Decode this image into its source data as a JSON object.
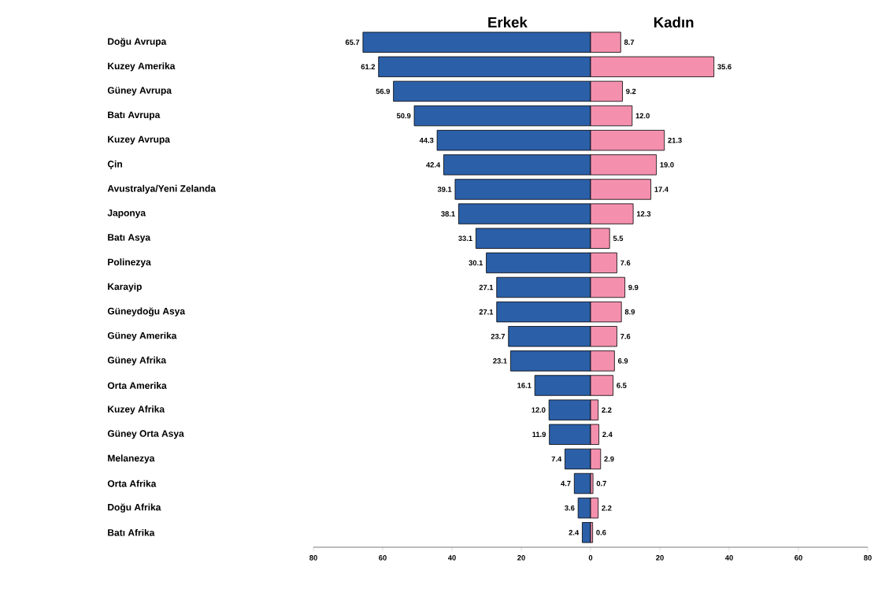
{
  "chart_data": {
    "type": "bar",
    "orientation": "horizontal",
    "categories": [
      "Doğu Avrupa",
      "Kuzey Amerika",
      "Güney Avrupa",
      "Batı Avrupa",
      "Kuzey Avrupa",
      "Çin",
      "Avustralya/Yeni Zelanda",
      "Japonya",
      "Batı Asya",
      "Polinezya",
      "Karayip",
      "Güneydoğu Asya",
      "Güney Amerika",
      "Güney Afrika",
      "Orta Amerika",
      "Kuzey Afrika",
      "Güney Orta Asya",
      "Melanezya",
      "Orta Afrika",
      "Doğu Afrika",
      "Batı Afrika"
    ],
    "series": [
      {
        "name": "Erkek",
        "color": "#2b5fa8",
        "values": [
          65.7,
          61.2,
          56.9,
          50.9,
          44.3,
          42.4,
          39.1,
          38.1,
          33.1,
          30.1,
          27.1,
          27.1,
          23.7,
          23.1,
          16.1,
          12.0,
          11.9,
          7.4,
          4.7,
          3.6,
          2.4
        ],
        "base": [
          -65.7,
          -61.2,
          -56.9,
          -50.9,
          -44.3,
          -42.4,
          -39.1,
          -38.1,
          -33.1,
          -30.1,
          -27.1,
          -27.1,
          -23.7,
          -23.1,
          -16.1,
          -12.0,
          -11.9,
          -7.4,
          -4.7,
          -3.6,
          -2.4
        ],
        "value_labels": [
          "65.7",
          "61.2",
          "56.9",
          "50.9",
          "44.3",
          "42.4",
          "39.1",
          "38.1",
          "33.1",
          "30.1",
          "27.1",
          "27.1",
          "23.7",
          "23.1",
          "16.1",
          "12.0",
          "11.9",
          "7.4",
          "4.7",
          "3.6",
          "2.4"
        ]
      },
      {
        "name": "Kadın",
        "color": "#f490ae",
        "values": [
          8.7,
          35.6,
          9.2,
          12.0,
          21.3,
          19.0,
          17.4,
          12.3,
          5.5,
          7.6,
          9.9,
          8.9,
          7.6,
          6.9,
          6.5,
          2.2,
          2.4,
          2.9,
          0.7,
          2.2,
          0.6
        ],
        "value_labels": [
          "8.7",
          "35.6",
          "9.2",
          "12.0",
          "21.3",
          "19.0",
          "17.4",
          "12.3",
          "5.5",
          "7.6",
          "9.9",
          "8.9",
          "7.6",
          "6.9",
          "6.5",
          "2.2",
          "2.4",
          "2.9",
          "0.7",
          "2.2",
          "0.6"
        ]
      }
    ],
    "xlim": [
      -80,
      80
    ],
    "xticks": [
      {
        "value": -80,
        "label": "80"
      },
      {
        "value": -60,
        "label": "60"
      },
      {
        "value": -40,
        "label": "40"
      },
      {
        "value": -20,
        "label": "20"
      },
      0,
      20,
      40,
      60,
      80
    ]
  }
}
